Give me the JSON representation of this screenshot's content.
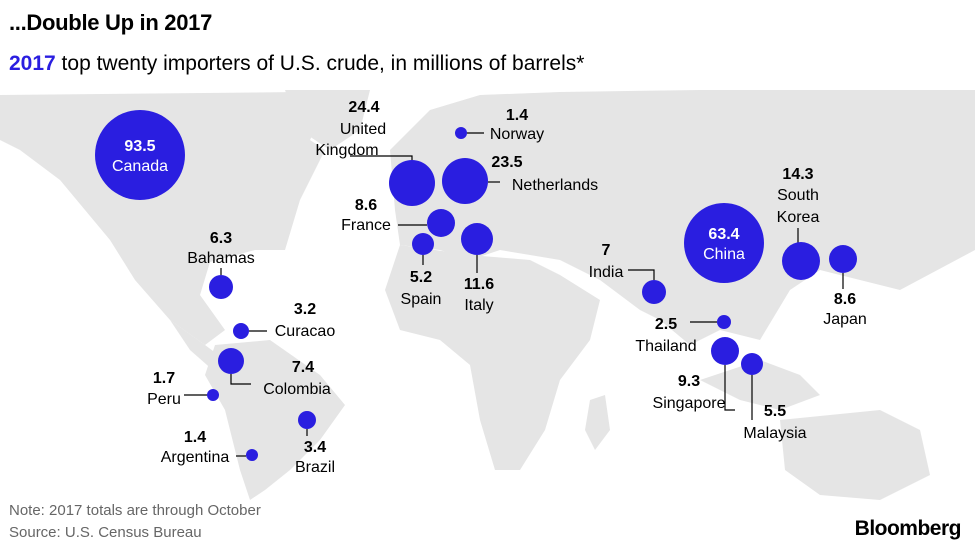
{
  "title": "...Double Up in 2017",
  "subtitle_year": "2017",
  "subtitle_rest": " top twenty importers of U.S. crude, in millions of barrels*",
  "note": "Note: 2017 totals are through October",
  "source": "Source: U.S. Census Bureau",
  "brand": "Bloomberg",
  "colors": {
    "bubble": "#2a1ee0",
    "land": "#e5e5e5",
    "leader": "#000000"
  },
  "chart_data": {
    "type": "bubble-map",
    "title": "...Double Up in 2017",
    "unit": "millions of barrels",
    "points": [
      {
        "country": "Canada",
        "value": 93.5
      },
      {
        "country": "China",
        "value": 63.4
      },
      {
        "country": "United Kingdom",
        "value": 24.4
      },
      {
        "country": "Netherlands",
        "value": 23.5
      },
      {
        "country": "South Korea",
        "value": 14.3
      },
      {
        "country": "Italy",
        "value": 11.6
      },
      {
        "country": "Singapore",
        "value": 9.3
      },
      {
        "country": "France",
        "value": 8.6
      },
      {
        "country": "Japan",
        "value": 8.6
      },
      {
        "country": "Colombia",
        "value": 7.4
      },
      {
        "country": "India",
        "value": 7
      },
      {
        "country": "Bahamas",
        "value": 6.3
      },
      {
        "country": "Malaysia",
        "value": 5.5
      },
      {
        "country": "Spain",
        "value": 5.2
      },
      {
        "country": "Brazil",
        "value": 3.4
      },
      {
        "country": "Curacao",
        "value": 3.2
      },
      {
        "country": "Thailand",
        "value": 2.5
      },
      {
        "country": "Peru",
        "value": 1.7
      },
      {
        "country": "Norway",
        "value": 1.4
      },
      {
        "country": "Argentina",
        "value": 1.4
      }
    ]
  }
}
